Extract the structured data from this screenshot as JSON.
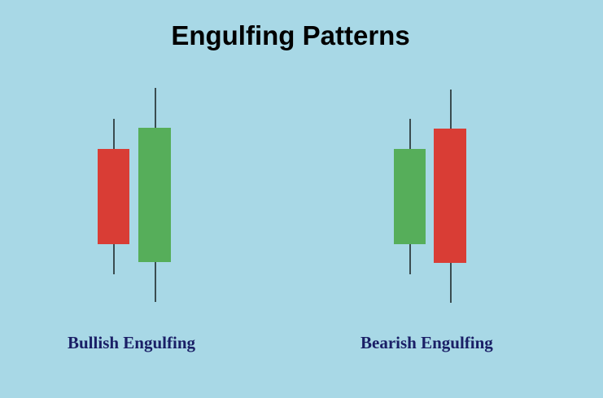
{
  "title": "Engulfing Patterns",
  "colors": {
    "background": "#a8d8e6",
    "bullish": "#56ae5a",
    "bearish": "#d93d35",
    "wick": "#000000",
    "label": "#1a1f66"
  },
  "patterns": [
    {
      "label": "Bullish Engulfing",
      "candles": [
        {
          "type": "bearish",
          "color": "#d93d35"
        },
        {
          "type": "bullish",
          "color": "#56ae5a"
        }
      ]
    },
    {
      "label": "Bearish Engulfing",
      "candles": [
        {
          "type": "bullish",
          "color": "#56ae5a"
        },
        {
          "type": "bearish",
          "color": "#d93d35"
        }
      ]
    }
  ]
}
